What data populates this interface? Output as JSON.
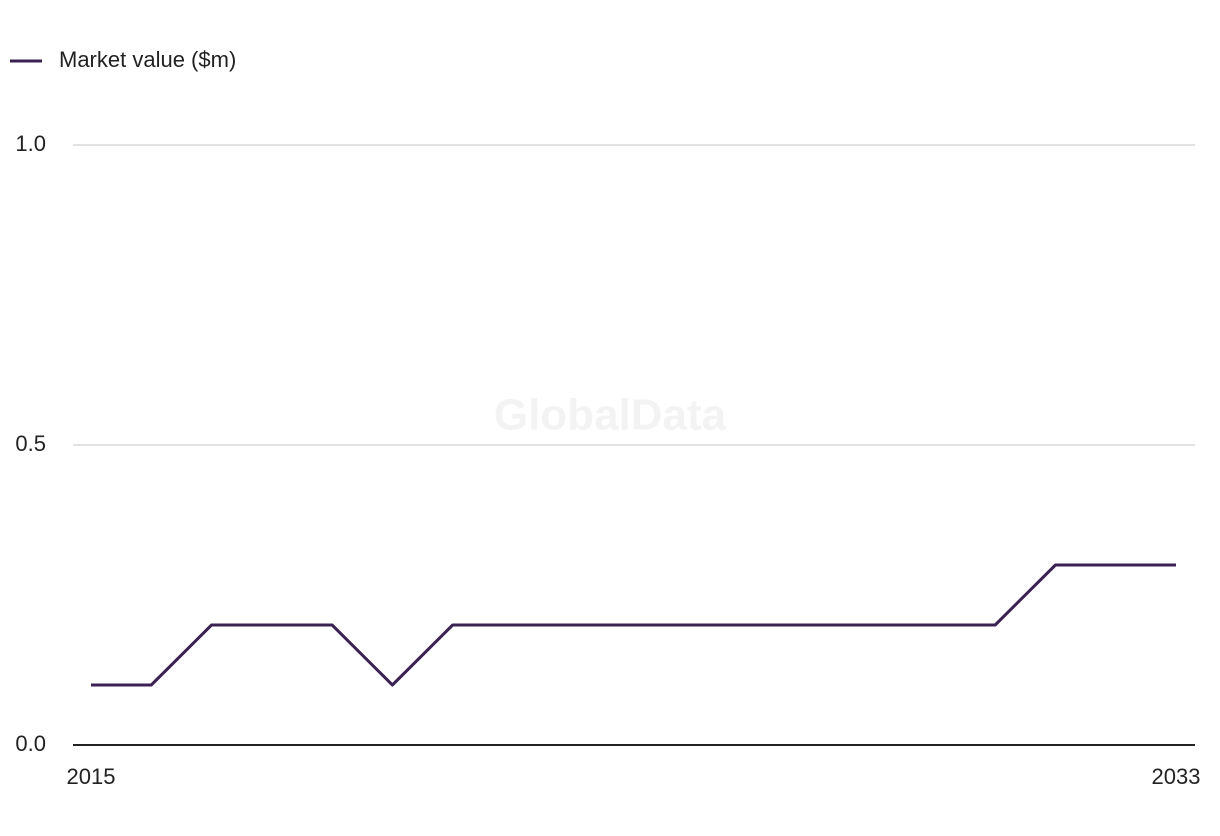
{
  "chart_data": {
    "type": "line",
    "watermark": "GlobalData",
    "x": [
      2015,
      2016,
      2017,
      2018,
      2019,
      2020,
      2021,
      2022,
      2023,
      2024,
      2025,
      2026,
      2027,
      2028,
      2029,
      2030,
      2031,
      2032,
      2033
    ],
    "series": [
      {
        "name": "Market value ($m)",
        "color": "#3a2352",
        "values": [
          0.1,
          0.1,
          0.2,
          0.2,
          0.2,
          0.1,
          0.2,
          0.2,
          0.2,
          0.2,
          0.2,
          0.2,
          0.2,
          0.2,
          0.2,
          0.2,
          0.3,
          0.3,
          0.3
        ]
      }
    ],
    "xlim": [
      2015,
      2033
    ],
    "xticks": [
      2015,
      2033
    ],
    "ylim": [
      0,
      1
    ],
    "yticks": [
      {
        "value": 0,
        "label": "0.0"
      },
      0.5,
      {
        "value": 1,
        "label": "1.0"
      }
    ],
    "grid": true,
    "legend": "top-left"
  }
}
